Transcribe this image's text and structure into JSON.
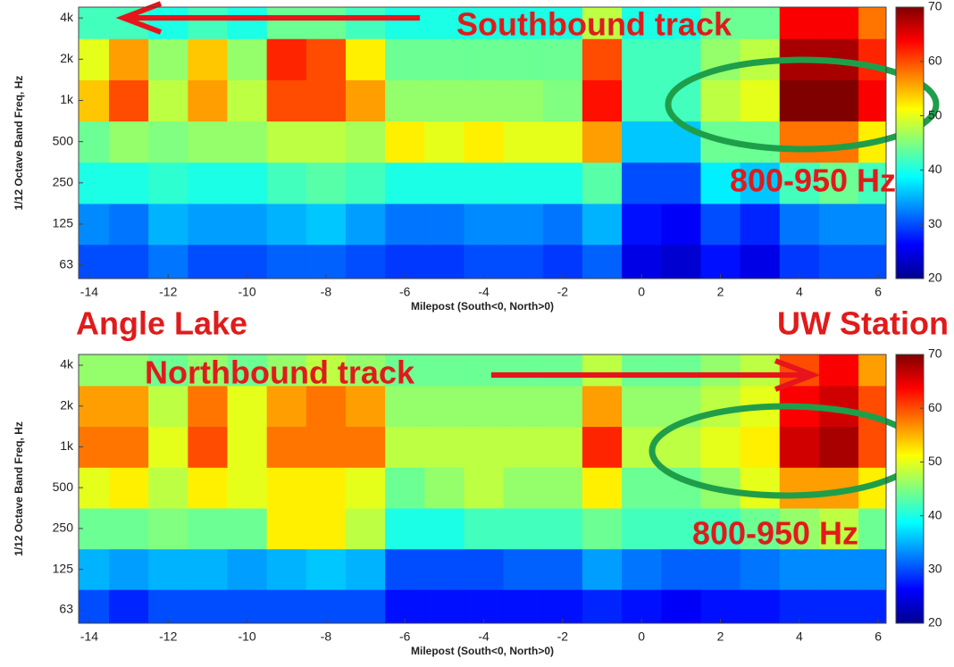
{
  "chart_data": [
    {
      "type": "heatmap",
      "colormap": "jet",
      "log_y": true,
      "xlabel": "Milepost (South<0, North>0)",
      "ylabel": "1/12 Octave Band Freq, Hz",
      "annotations": {
        "track": "Southbound track",
        "band": "800-950 Hz"
      },
      "x": [
        -14,
        -13,
        -12,
        -11,
        -10,
        -9,
        -8,
        -7,
        -6,
        -5,
        -4,
        -3,
        -2,
        -1,
        0,
        1,
        2,
        3,
        4,
        5,
        6
      ],
      "y": [
        63,
        125,
        250,
        500,
        1000,
        2000,
        4000
      ],
      "z": [
        [
          30,
          30,
          32,
          30,
          30,
          31,
          31,
          30,
          29,
          29,
          30,
          30,
          29,
          31,
          25,
          24,
          27,
          25,
          29,
          30,
          30
        ],
        [
          33,
          32,
          35,
          34,
          34,
          35,
          36,
          34,
          32,
          32,
          33,
          33,
          32,
          35,
          27,
          26,
          30,
          28,
          32,
          33,
          33
        ],
        [
          40,
          40,
          41,
          40,
          40,
          42,
          43,
          42,
          40,
          40,
          40,
          40,
          40,
          43,
          30,
          30,
          38,
          36,
          42,
          44,
          42
        ],
        [
          44,
          46,
          45,
          46,
          46,
          48,
          48,
          47,
          52,
          50,
          52,
          50,
          50,
          56,
          36,
          36,
          44,
          44,
          58,
          58,
          52
        ],
        [
          54,
          60,
          48,
          56,
          48,
          60,
          60,
          56,
          46,
          46,
          46,
          46,
          45,
          63,
          42,
          42,
          48,
          50,
          70,
          70,
          64
        ],
        [
          50,
          56,
          46,
          54,
          46,
          62,
          60,
          52,
          44,
          44,
          44,
          44,
          44,
          60,
          42,
          42,
          46,
          48,
          68,
          68,
          62
        ],
        [
          42,
          42,
          40,
          42,
          40,
          44,
          44,
          42,
          40,
          40,
          40,
          40,
          40,
          48,
          40,
          40,
          44,
          44,
          64,
          64,
          58
        ]
      ],
      "xlim": [
        -14.27,
        6.2
      ],
      "xticks": [
        -14,
        -12,
        -10,
        -8,
        -6,
        -4,
        -2,
        0,
        2,
        4,
        6
      ],
      "ylim": [
        50,
        4800
      ],
      "yticks": [
        63,
        125,
        250,
        500,
        {
          "value": 1000,
          "label": "1k"
        },
        {
          "value": 2000,
          "label": "2k"
        },
        {
          "value": 4000,
          "label": "4k"
        }
      ],
      "clim": [
        20,
        70
      ],
      "cticks": [
        20,
        30,
        40,
        50,
        60,
        70
      ]
    },
    {
      "type": "heatmap",
      "colormap": "jet",
      "log_y": true,
      "xlabel": "Milepost (South<0, North>0)",
      "ylabel": "1/12 Octave Band Freq, Hz",
      "annotations": {
        "track": "Northbound track",
        "band": "800-950 Hz"
      },
      "x": [
        -14,
        -13,
        -12,
        -11,
        -10,
        -9,
        -8,
        -7,
        -6,
        -5,
        -4,
        -3,
        -2,
        -1,
        0,
        1,
        2,
        3,
        4,
        5,
        6
      ],
      "y": [
        63,
        125,
        250,
        500,
        1000,
        2000,
        4000
      ],
      "z": [
        [
          30,
          28,
          30,
          30,
          30,
          30,
          30,
          30,
          27,
          27,
          27,
          27,
          27,
          28,
          27,
          26,
          27,
          27,
          28,
          28,
          28
        ],
        [
          35,
          34,
          35,
          35,
          34,
          35,
          36,
          35,
          30,
          30,
          30,
          31,
          31,
          34,
          32,
          31,
          31,
          32,
          33,
          33,
          33
        ],
        [
          44,
          44,
          45,
          44,
          44,
          52,
          52,
          48,
          40,
          40,
          42,
          42,
          42,
          44,
          42,
          42,
          42,
          44,
          46,
          48,
          44
        ],
        [
          50,
          52,
          48,
          52,
          50,
          52,
          52,
          50,
          44,
          46,
          48,
          46,
          46,
          52,
          44,
          44,
          46,
          50,
          56,
          56,
          52
        ],
        [
          58,
          58,
          50,
          60,
          50,
          58,
          58,
          58,
          48,
          48,
          48,
          48,
          48,
          62,
          48,
          48,
          50,
          52,
          66,
          68,
          60
        ],
        [
          56,
          56,
          48,
          58,
          50,
          56,
          58,
          56,
          46,
          46,
          46,
          46,
          46,
          56,
          46,
          46,
          48,
          50,
          64,
          66,
          60
        ],
        [
          46,
          46,
          44,
          46,
          44,
          46,
          48,
          46,
          44,
          44,
          44,
          44,
          44,
          48,
          44,
          44,
          46,
          48,
          60,
          64,
          56
        ]
      ],
      "xlim": [
        -14.27,
        6.2
      ],
      "xticks": [
        -14,
        -12,
        -10,
        -8,
        -6,
        -4,
        -2,
        0,
        2,
        4,
        6
      ],
      "ylim": [
        50,
        4800
      ],
      "yticks": [
        63,
        125,
        250,
        500,
        {
          "value": 1000,
          "label": "1k"
        },
        {
          "value": 2000,
          "label": "2k"
        },
        {
          "value": 4000,
          "label": "4k"
        }
      ],
      "clim": [
        20,
        70
      ],
      "cticks": [
        20,
        30,
        40,
        50,
        60,
        70
      ]
    }
  ],
  "side_labels": {
    "left": "Angle Lake",
    "right": "UW Station"
  }
}
